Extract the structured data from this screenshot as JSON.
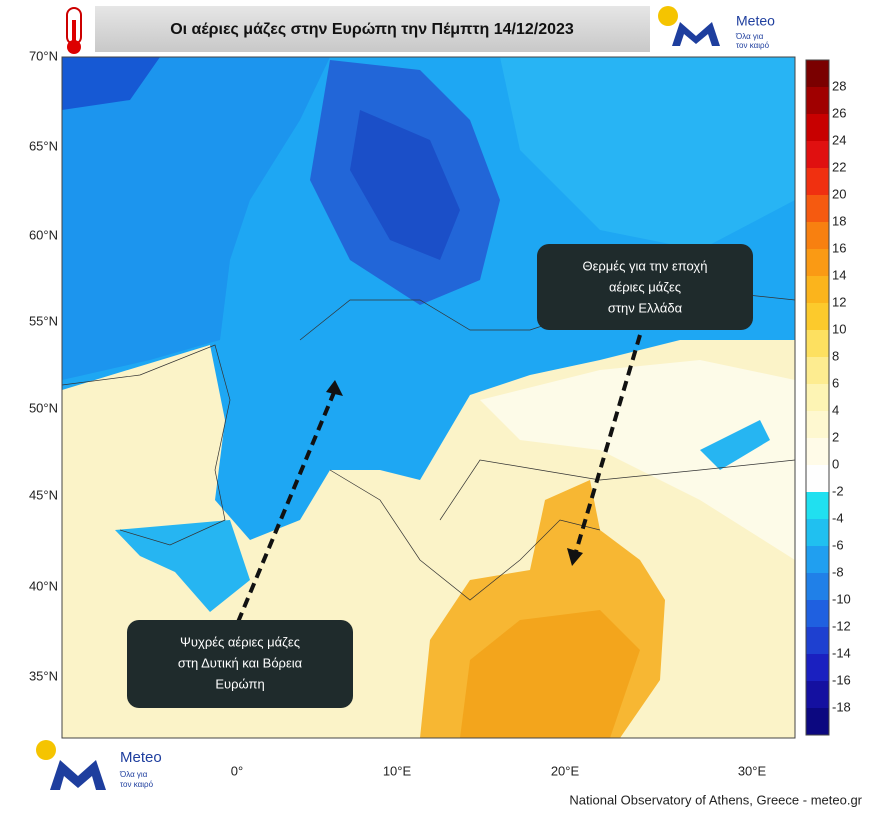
{
  "header": {
    "title": "Οι αέριες μάζες στην Ευρώπη την  Πέμπτη 14/12/2023"
  },
  "logo_top": {
    "name": "Meteo",
    "tagline": [
      "Όλα για",
      "τον καιρό"
    ]
  },
  "logo_bottom": {
    "name": "Meteo",
    "tagline": [
      "Όλα για",
      "τον καιρό"
    ]
  },
  "map": {
    "lat_labels": [
      "70°N",
      "65°N",
      "60°N",
      "55°N",
      "50°N",
      "45°N",
      "40°N",
      "35°N"
    ],
    "lon_labels": [
      "0°",
      "10°E",
      "20°E",
      "30°E"
    ],
    "annotations": [
      {
        "lines": [
          "Θερμές για την εποχή",
          "αέριες μάζες",
          "στην Ελλάδα"
        ]
      },
      {
        "lines": [
          "Ψυχρές αέριες μάζες",
          "στη Δυτική και Βόρεια",
          "Ευρώπη"
        ]
      }
    ]
  },
  "colorbar": {
    "labels": [
      "28",
      "26",
      "24",
      "22",
      "20",
      "18",
      "16",
      "14",
      "12",
      "10",
      "8",
      "6",
      "4",
      "2",
      "0",
      "-2",
      "-4",
      "-6",
      "-8",
      "-10",
      "-12",
      "-14",
      "-16",
      "-18"
    ]
  },
  "footer": "National Observatory of Athens, Greece - meteo.gr"
}
